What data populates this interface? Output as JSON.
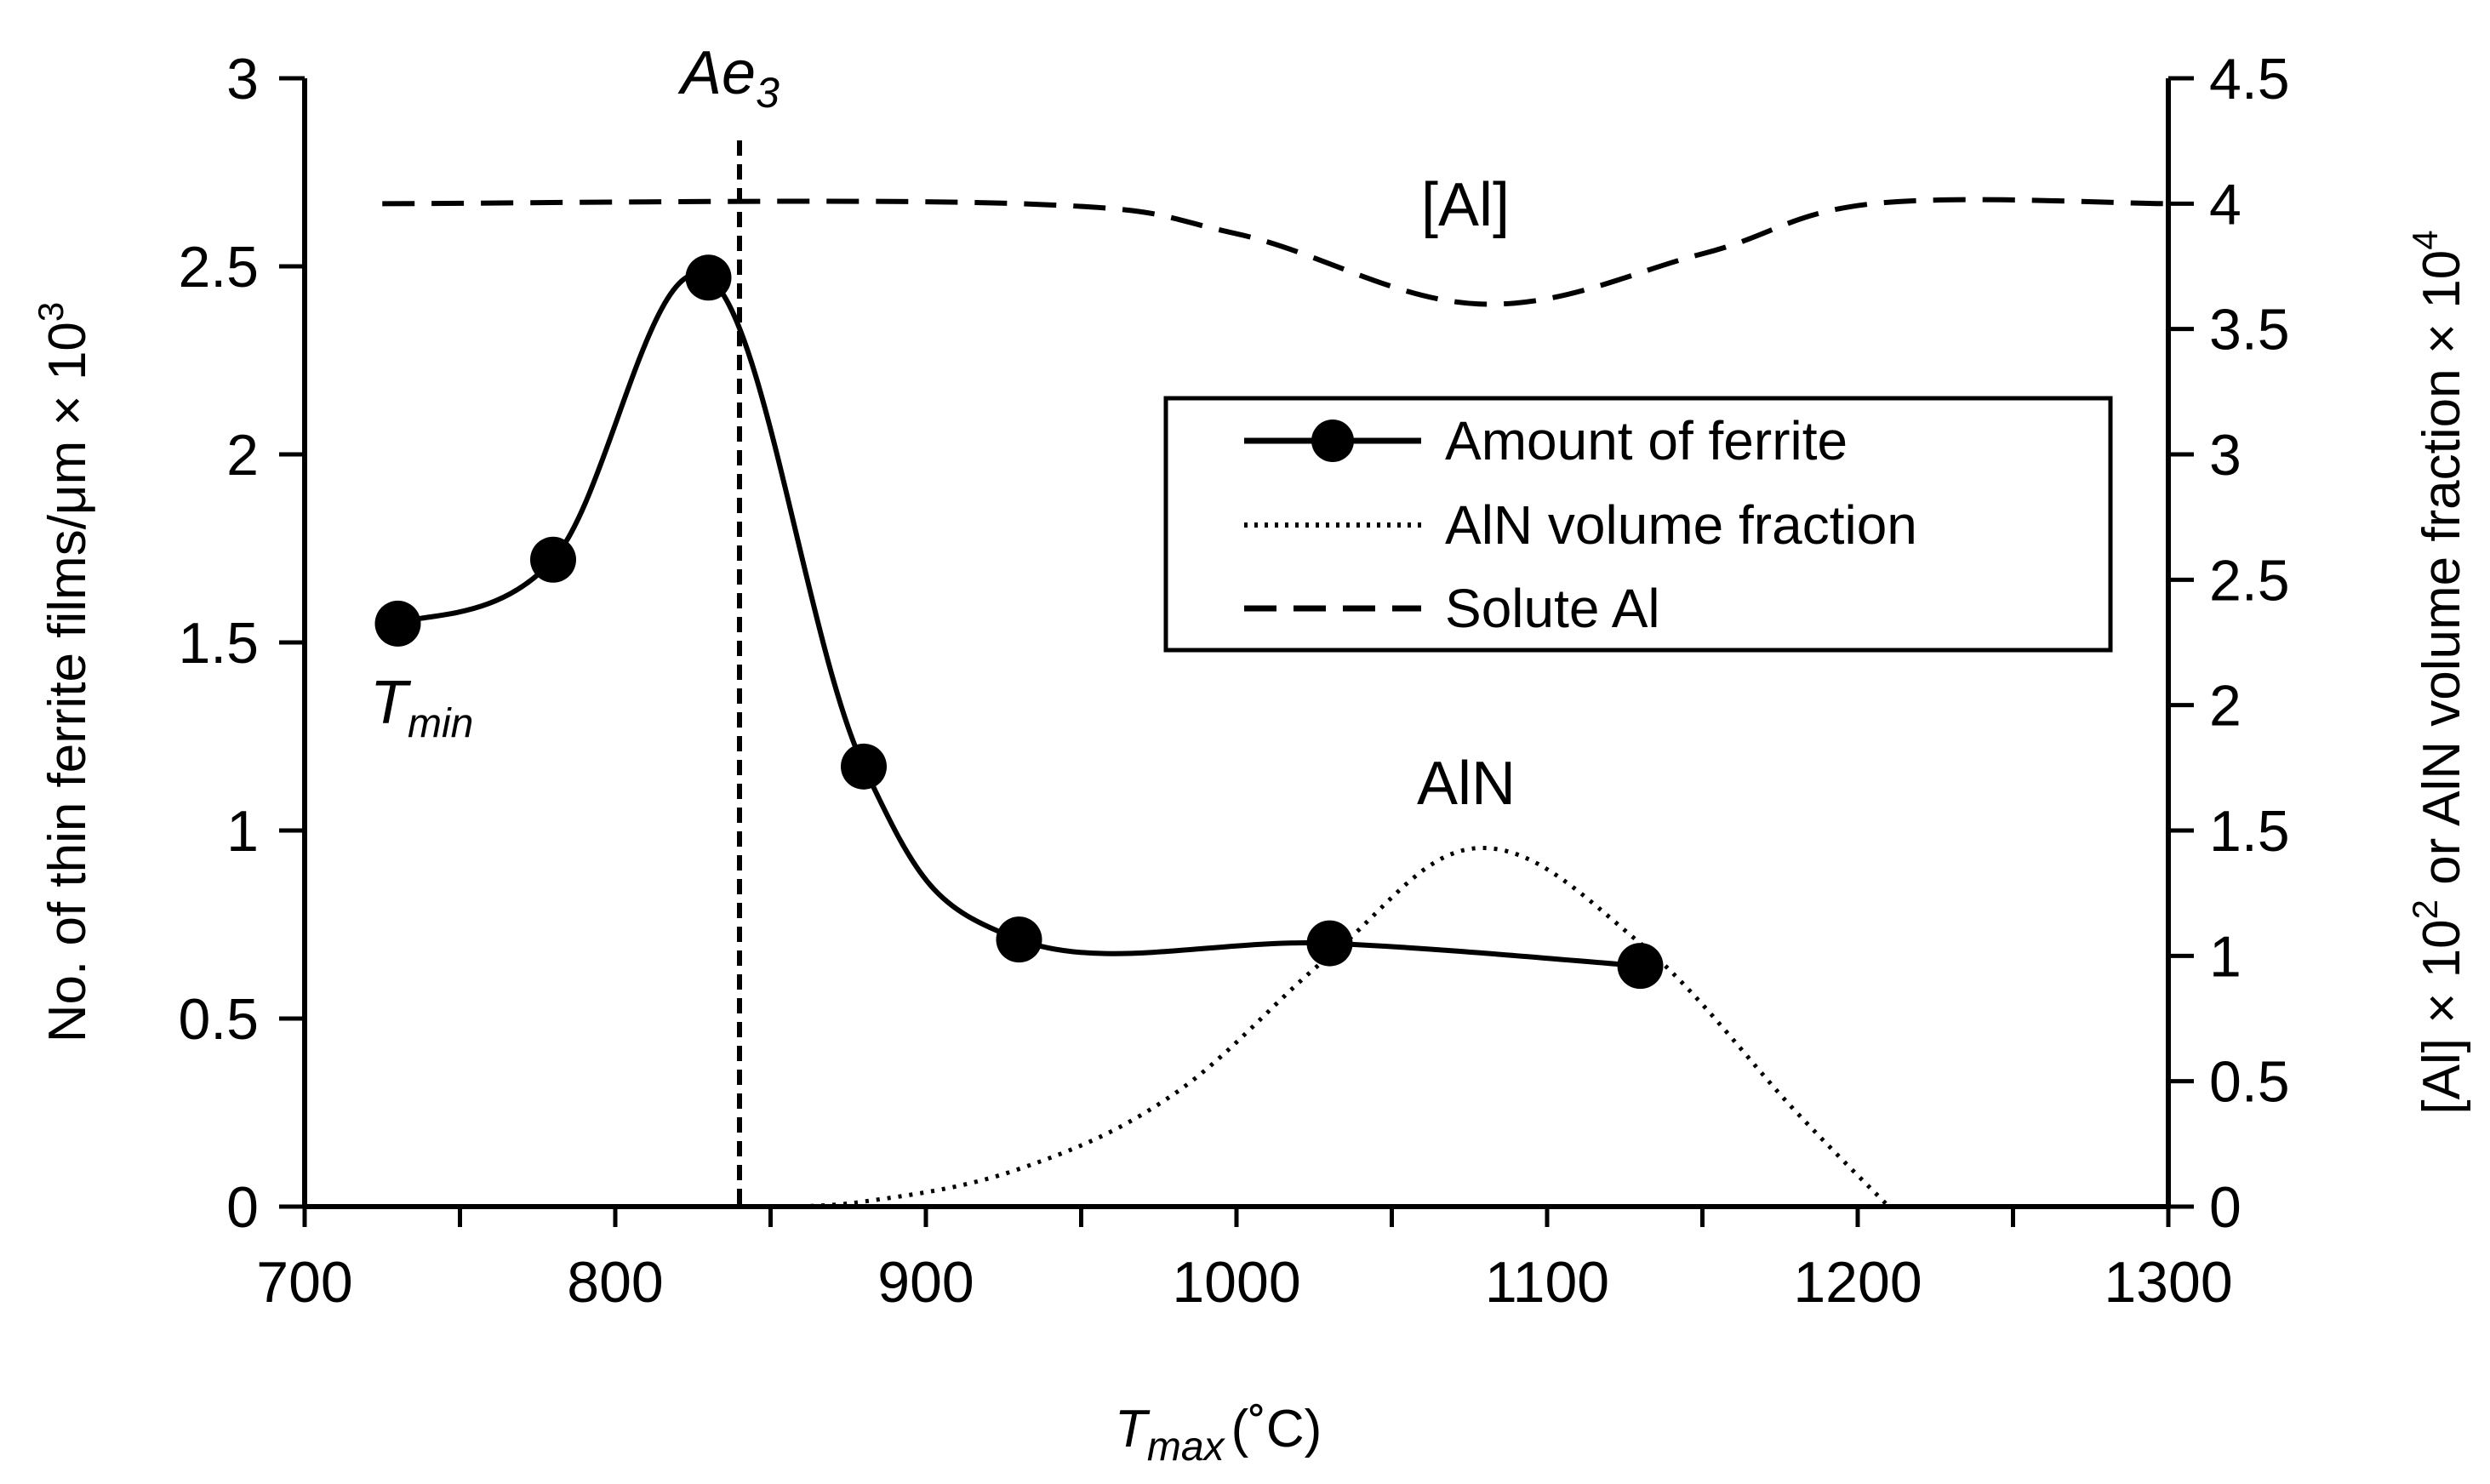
{
  "chart_data": {
    "type": "line",
    "x_axis": {
      "label_main": "T",
      "label_sub": "max",
      "label_unit": "(˚C)",
      "range": [
        700,
        1300
      ],
      "ticks": [
        "700",
        "800",
        "900",
        "1000",
        "1100",
        "1200",
        "1300"
      ]
    },
    "y_axis_left": {
      "label": "No. of thin ferrite films/μm × 10",
      "label_sup": "3",
      "range": [
        0,
        3
      ],
      "ticks": [
        "0",
        "0.5",
        "1",
        "1.5",
        "2",
        "2.5",
        "3"
      ]
    },
    "y_axis_right": {
      "label_a": "[Al] × 10",
      "label_sup_a": "2",
      "label_b": " or AlN  volume fraction × 10",
      "label_sup_b": "4",
      "range": [
        0,
        4.5
      ],
      "ticks": [
        "0",
        "0.5",
        "1",
        "1.5",
        "2",
        "2.5",
        "3",
        "3.5",
        "4",
        "4.5"
      ]
    },
    "series": [
      {
        "name": "Amount of ferrite",
        "axis": "left",
        "style": "solid-markers",
        "x": [
          730,
          780,
          830,
          880,
          930,
          1030,
          1130
        ],
        "y": [
          1.55,
          1.72,
          2.47,
          1.17,
          0.71,
          0.7,
          0.64
        ]
      },
      {
        "name": "AlN volume fraction",
        "axis": "right",
        "style": "dotted",
        "x": [
          845,
          880,
          930,
          980,
          1030,
          1078,
          1130,
          1180,
          1210
        ],
        "y": [
          0,
          0.02,
          0.15,
          0.45,
          1.0,
          1.43,
          1.05,
          0.38,
          0
        ]
      },
      {
        "name": "Solute Al",
        "axis": "right",
        "style": "dashed",
        "x": [
          725,
          930,
          1000,
          1078,
          1150,
          1205,
          1300
        ],
        "y": [
          4.0,
          4.0,
          3.88,
          3.6,
          3.8,
          4.0,
          4.0
        ]
      }
    ],
    "vline": {
      "x": 840,
      "label_main": "Ae",
      "label_sub": "3"
    },
    "annotations": {
      "al_label": "[Al]",
      "aln_label": "AlN",
      "tmin_main": "T",
      "tmin_sub": "min"
    },
    "legend_position": "right-upper",
    "grid": false
  }
}
